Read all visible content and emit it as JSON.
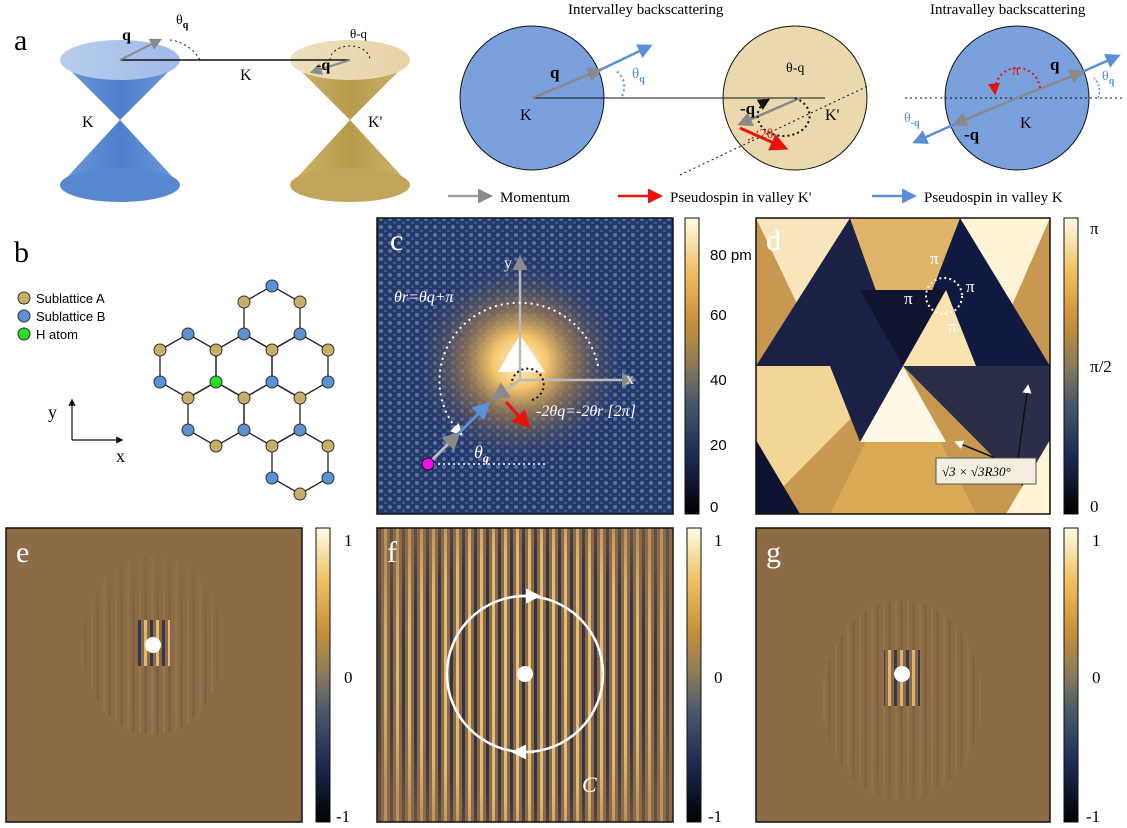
{
  "panels": {
    "a": {
      "label": "a",
      "cone_left_valley": "K",
      "cone_right_valley": "K'",
      "momentum_left": "q",
      "momentum_right": "-q",
      "angle_left": "θ",
      "angle_left_sub": "q",
      "angle_right": "θ-q",
      "bridge_label": "K",
      "title_inter": "Intervalley backscattering",
      "title_intra": "Intravalley backscattering",
      "inter_left_valley": "K",
      "inter_right_valley": "K'",
      "inter_q": "q",
      "inter_neg_q": "-q",
      "inter_theta_q": "θ",
      "inter_theta_q_sub": "q",
      "inter_theta_neg_q": "θ-q",
      "inter_minus_2theta": "-2θ",
      "inter_minus_2theta_sub": "q",
      "intra_valley": "K",
      "intra_q": "q",
      "intra_neg_q": "-q",
      "intra_pi": "π",
      "intra_theta_q": "θ",
      "intra_theta_q_sub": "q",
      "intra_theta_neg_q": "θ",
      "intra_theta_neg_q_sub": "-q",
      "legend": [
        {
          "label": "Momentum",
          "color": "#a0a0a0"
        },
        {
          "label": "Pseudospin in  valley K'",
          "color": "#e8140c"
        },
        {
          "label": "Pseudospin in valley K",
          "color": "#5b8fd6"
        }
      ]
    },
    "b": {
      "label": "b",
      "legend": [
        {
          "label": "Sublattice A",
          "color": "#c9ae67"
        },
        {
          "label": "Sublattice B",
          "color": "#5b8fd6"
        },
        {
          "label": "H atom",
          "color": "#22dd22"
        }
      ],
      "axis_y": "y",
      "axis_x": "x"
    },
    "c": {
      "label": "c",
      "eq_top": "θr=θq+π",
      "eq_bottom": "-2θq=-2θr [2π]",
      "axis_y": "y",
      "axis_x": "x",
      "theta_label": "θ",
      "theta_sub": "q",
      "colorbar_ticks": [
        "80 pm",
        "60",
        "40",
        "20",
        "0"
      ]
    },
    "d": {
      "label": "d",
      "pi_labels": [
        "π",
        "π",
        "π",
        "π"
      ],
      "annotation": "√3 × √3R30°",
      "colorbar_ticks": [
        "π",
        "π/2",
        "0"
      ]
    },
    "e": {
      "label": "e",
      "colorbar_ticks": [
        "1",
        "0",
        "-1"
      ]
    },
    "f": {
      "label": "f",
      "contour_label": "C",
      "colorbar_ticks": [
        "1",
        "0",
        "-1"
      ]
    },
    "g": {
      "label": "g",
      "colorbar_ticks": [
        "1",
        "0",
        "-1"
      ]
    }
  }
}
